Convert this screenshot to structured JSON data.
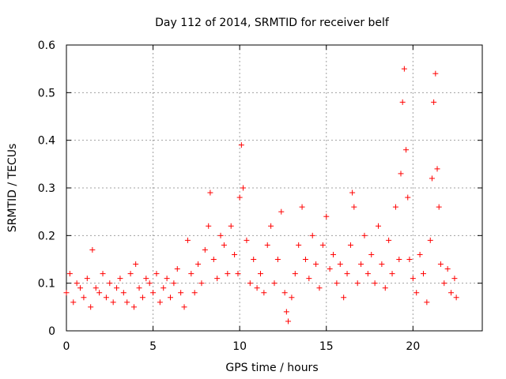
{
  "chart_data": {
    "type": "scatter",
    "title": "Day 112 of 2014, SRMTID for receiver belf",
    "xlabel": "GPS time / hours",
    "ylabel": "SRMTID / TECUs",
    "xlim": [
      0,
      24
    ],
    "ylim": [
      0,
      0.6
    ],
    "xticks": [
      0,
      5,
      10,
      15,
      20
    ],
    "xtick_labels": [
      "0",
      "5",
      "10",
      "15",
      "20"
    ],
    "yticks": [
      0,
      0.1,
      0.2,
      0.3,
      0.4,
      0.5,
      0.6
    ],
    "ytick_labels": [
      "0",
      "0.1",
      "0.2",
      "0.3",
      "0.4",
      "0.5",
      "0.6"
    ],
    "grid": true,
    "marker": "plus",
    "marker_color": "#ff0000",
    "series": [
      {
        "name": "SRMTID",
        "note": "representative sampled points (dense scatter)",
        "x": [
          0.0,
          0.2,
          0.4,
          0.6,
          0.8,
          1.0,
          1.2,
          1.4,
          1.5,
          1.7,
          1.9,
          2.1,
          2.3,
          2.5,
          2.7,
          2.9,
          3.1,
          3.3,
          3.5,
          3.7,
          3.9,
          4.0,
          4.2,
          4.4,
          4.6,
          4.8,
          5.0,
          5.2,
          5.4,
          5.6,
          5.8,
          6.0,
          6.2,
          6.4,
          6.6,
          6.8,
          7.0,
          7.2,
          7.4,
          7.6,
          7.8,
          8.0,
          8.2,
          8.3,
          8.5,
          8.7,
          8.9,
          9.1,
          9.3,
          9.5,
          9.7,
          9.9,
          10.0,
          10.1,
          10.2,
          10.4,
          10.6,
          10.8,
          11.0,
          11.2,
          11.4,
          11.6,
          11.8,
          12.0,
          12.2,
          12.4,
          12.6,
          12.7,
          12.8,
          13.0,
          13.2,
          13.4,
          13.6,
          13.8,
          14.0,
          14.2,
          14.4,
          14.6,
          14.8,
          15.0,
          15.2,
          15.4,
          15.6,
          15.8,
          16.0,
          16.2,
          16.4,
          16.5,
          16.6,
          16.8,
          17.0,
          17.2,
          17.4,
          17.6,
          17.8,
          18.0,
          18.2,
          18.4,
          18.6,
          18.8,
          19.0,
          19.2,
          19.3,
          19.4,
          19.5,
          19.6,
          19.7,
          19.8,
          20.0,
          20.2,
          20.4,
          20.6,
          20.8,
          21.0,
          21.1,
          21.2,
          21.3,
          21.4,
          21.5,
          21.6,
          21.8,
          22.0,
          22.2,
          22.4,
          22.5
        ],
        "y": [
          0.08,
          0.12,
          0.06,
          0.1,
          0.09,
          0.07,
          0.11,
          0.05,
          0.17,
          0.09,
          0.08,
          0.12,
          0.07,
          0.1,
          0.06,
          0.09,
          0.11,
          0.08,
          0.06,
          0.12,
          0.05,
          0.14,
          0.09,
          0.07,
          0.11,
          0.1,
          0.08,
          0.12,
          0.06,
          0.09,
          0.11,
          0.07,
          0.1,
          0.13,
          0.08,
          0.05,
          0.19,
          0.12,
          0.08,
          0.14,
          0.1,
          0.17,
          0.22,
          0.29,
          0.15,
          0.11,
          0.2,
          0.18,
          0.12,
          0.22,
          0.16,
          0.12,
          0.28,
          0.39,
          0.3,
          0.19,
          0.1,
          0.15,
          0.09,
          0.12,
          0.08,
          0.18,
          0.22,
          0.1,
          0.15,
          0.25,
          0.08,
          0.04,
          0.02,
          0.07,
          0.12,
          0.18,
          0.26,
          0.15,
          0.11,
          0.2,
          0.14,
          0.09,
          0.18,
          0.24,
          0.13,
          0.16,
          0.1,
          0.14,
          0.07,
          0.12,
          0.18,
          0.29,
          0.26,
          0.1,
          0.14,
          0.2,
          0.12,
          0.16,
          0.1,
          0.22,
          0.14,
          0.09,
          0.19,
          0.12,
          0.26,
          0.15,
          0.33,
          0.48,
          0.55,
          0.38,
          0.28,
          0.15,
          0.11,
          0.08,
          0.16,
          0.12,
          0.06,
          0.19,
          0.32,
          0.48,
          0.54,
          0.34,
          0.26,
          0.14,
          0.1,
          0.13,
          0.08,
          0.11,
          0.07
        ]
      }
    ]
  }
}
